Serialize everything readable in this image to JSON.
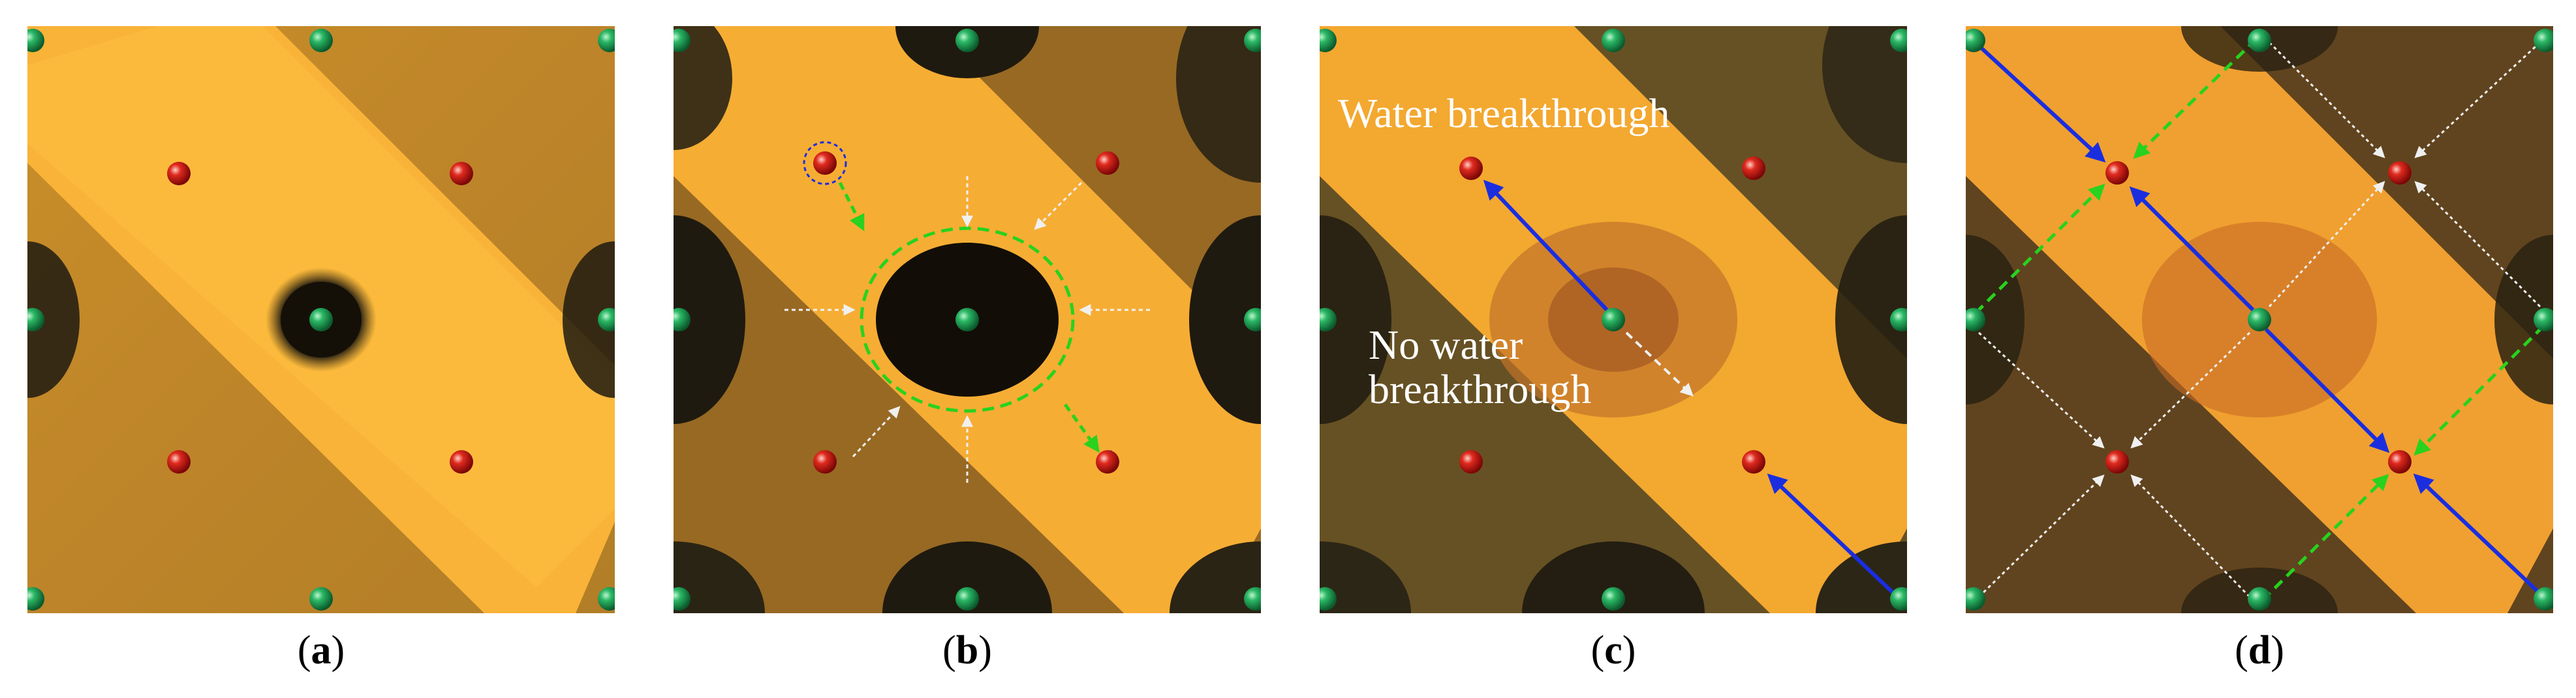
{
  "panels": [
    {
      "id": "a",
      "caption": {
        "open": "(",
        "letter": "a",
        "close": ")"
      }
    },
    {
      "id": "b",
      "caption": {
        "open": "(",
        "letter": "b",
        "close": ")"
      }
    },
    {
      "id": "c",
      "caption": {
        "open": "(",
        "letter": "c",
        "close": ")"
      },
      "annotations": {
        "water_breakthrough": "Water breakthrough",
        "no_water_line1": "No water",
        "no_water_line2": "breakthrough"
      }
    },
    {
      "id": "d",
      "caption": {
        "open": "(",
        "letter": "d",
        "close": ")"
      }
    }
  ],
  "colors": {
    "background_dark": "#3d3220",
    "oil_orange": "#f3a52a",
    "band_orange": "#ffb530",
    "dark_zone": "#1e1a10",
    "producer_well_green": "#1f9a55",
    "injector_well_red": "#d81818",
    "flow_blue": "#1a2ee0",
    "front_green": "#28d21e",
    "arrow_white": "#f0f0f0"
  },
  "icons": {
    "green_well": "green-sphere-well-icon",
    "red_well": "red-sphere-well-icon"
  }
}
